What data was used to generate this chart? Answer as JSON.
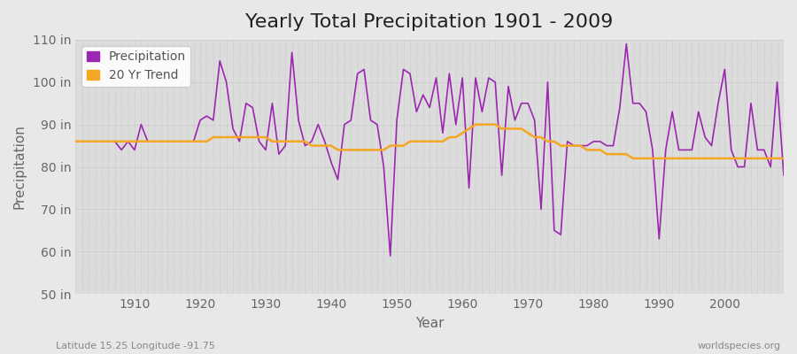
{
  "title": "Yearly Total Precipitation 1901 - 2009",
  "xlabel": "Year",
  "ylabel": "Precipitation",
  "subtitle_left": "Latitude 15.25 Longitude -91.75",
  "subtitle_right": "worldspecies.org",
  "ylim": [
    50,
    110
  ],
  "yticks": [
    50,
    60,
    70,
    80,
    90,
    100,
    110
  ],
  "ytick_labels": [
    "50 in",
    "60 in",
    "70 in",
    "80 in",
    "90 in",
    "100 in",
    "110 in"
  ],
  "years": [
    1901,
    1902,
    1903,
    1904,
    1905,
    1906,
    1907,
    1908,
    1909,
    1910,
    1911,
    1912,
    1913,
    1914,
    1915,
    1916,
    1917,
    1918,
    1919,
    1920,
    1921,
    1922,
    1923,
    1924,
    1925,
    1926,
    1927,
    1928,
    1929,
    1930,
    1931,
    1932,
    1933,
    1934,
    1935,
    1936,
    1937,
    1938,
    1939,
    1940,
    1941,
    1942,
    1943,
    1944,
    1945,
    1946,
    1947,
    1948,
    1949,
    1950,
    1951,
    1952,
    1953,
    1954,
    1955,
    1956,
    1957,
    1958,
    1959,
    1960,
    1961,
    1962,
    1963,
    1964,
    1965,
    1966,
    1967,
    1968,
    1969,
    1970,
    1971,
    1972,
    1973,
    1974,
    1975,
    1976,
    1977,
    1978,
    1979,
    1980,
    1981,
    1982,
    1983,
    1984,
    1985,
    1986,
    1987,
    1988,
    1989,
    1990,
    1991,
    1992,
    1993,
    1994,
    1995,
    1996,
    1997,
    1998,
    1999,
    2000,
    2001,
    2002,
    2003,
    2004,
    2005,
    2006,
    2007,
    2008,
    2009
  ],
  "precipitation": [
    86,
    86,
    86,
    86,
    86,
    86,
    86,
    84,
    86,
    84,
    90,
    86,
    86,
    86,
    86,
    86,
    86,
    86,
    86,
    91,
    92,
    91,
    105,
    100,
    89,
    86,
    95,
    94,
    86,
    84,
    95,
    83,
    85,
    107,
    91,
    85,
    86,
    90,
    86,
    81,
    77,
    90,
    91,
    102,
    103,
    91,
    90,
    80,
    59,
    91,
    103,
    102,
    93,
    97,
    94,
    101,
    88,
    102,
    90,
    101,
    75,
    101,
    93,
    101,
    100,
    78,
    99,
    91,
    95,
    95,
    91,
    70,
    100,
    65,
    64,
    86,
    85,
    85,
    85,
    86,
    86,
    85,
    85,
    94,
    109,
    95,
    95,
    93,
    84,
    63,
    84,
    93,
    84,
    84,
    84,
    93,
    87,
    85,
    95,
    103,
    84,
    80,
    80,
    95,
    84,
    84,
    80,
    100,
    78
  ],
  "trend": [
    86,
    86,
    86,
    86,
    86,
    86,
    86,
    86,
    86,
    86,
    86,
    86,
    86,
    86,
    86,
    86,
    86,
    86,
    86,
    86,
    86,
    87,
    87,
    87,
    87,
    87,
    87,
    87,
    87,
    87,
    86,
    86,
    86,
    86,
    86,
    86,
    85,
    85,
    85,
    85,
    84,
    84,
    84,
    84,
    84,
    84,
    84,
    84,
    85,
    85,
    85,
    86,
    86,
    86,
    86,
    86,
    86,
    87,
    87,
    88,
    89,
    90,
    90,
    90,
    90,
    89,
    89,
    89,
    89,
    88,
    87,
    87,
    86,
    86,
    85,
    85,
    85,
    85,
    84,
    84,
    84,
    83,
    83,
    83,
    83,
    82,
    82,
    82,
    82,
    82,
    82,
    82,
    82,
    82,
    82,
    82,
    82,
    82,
    82,
    82,
    82,
    82,
    82,
    82,
    82,
    82,
    82,
    82,
    82
  ],
  "precip_color": "#9b27af",
  "trend_color": "#f5a623",
  "background_color": "#e8e8e8",
  "plot_bg_color": "#dcdcdc",
  "grid_color": "#c8c8c8",
  "title_fontsize": 16,
  "axis_label_fontsize": 11,
  "tick_fontsize": 10,
  "legend_fontsize": 10,
  "xticks": [
    1910,
    1920,
    1930,
    1940,
    1950,
    1960,
    1970,
    1980,
    1990,
    2000
  ]
}
